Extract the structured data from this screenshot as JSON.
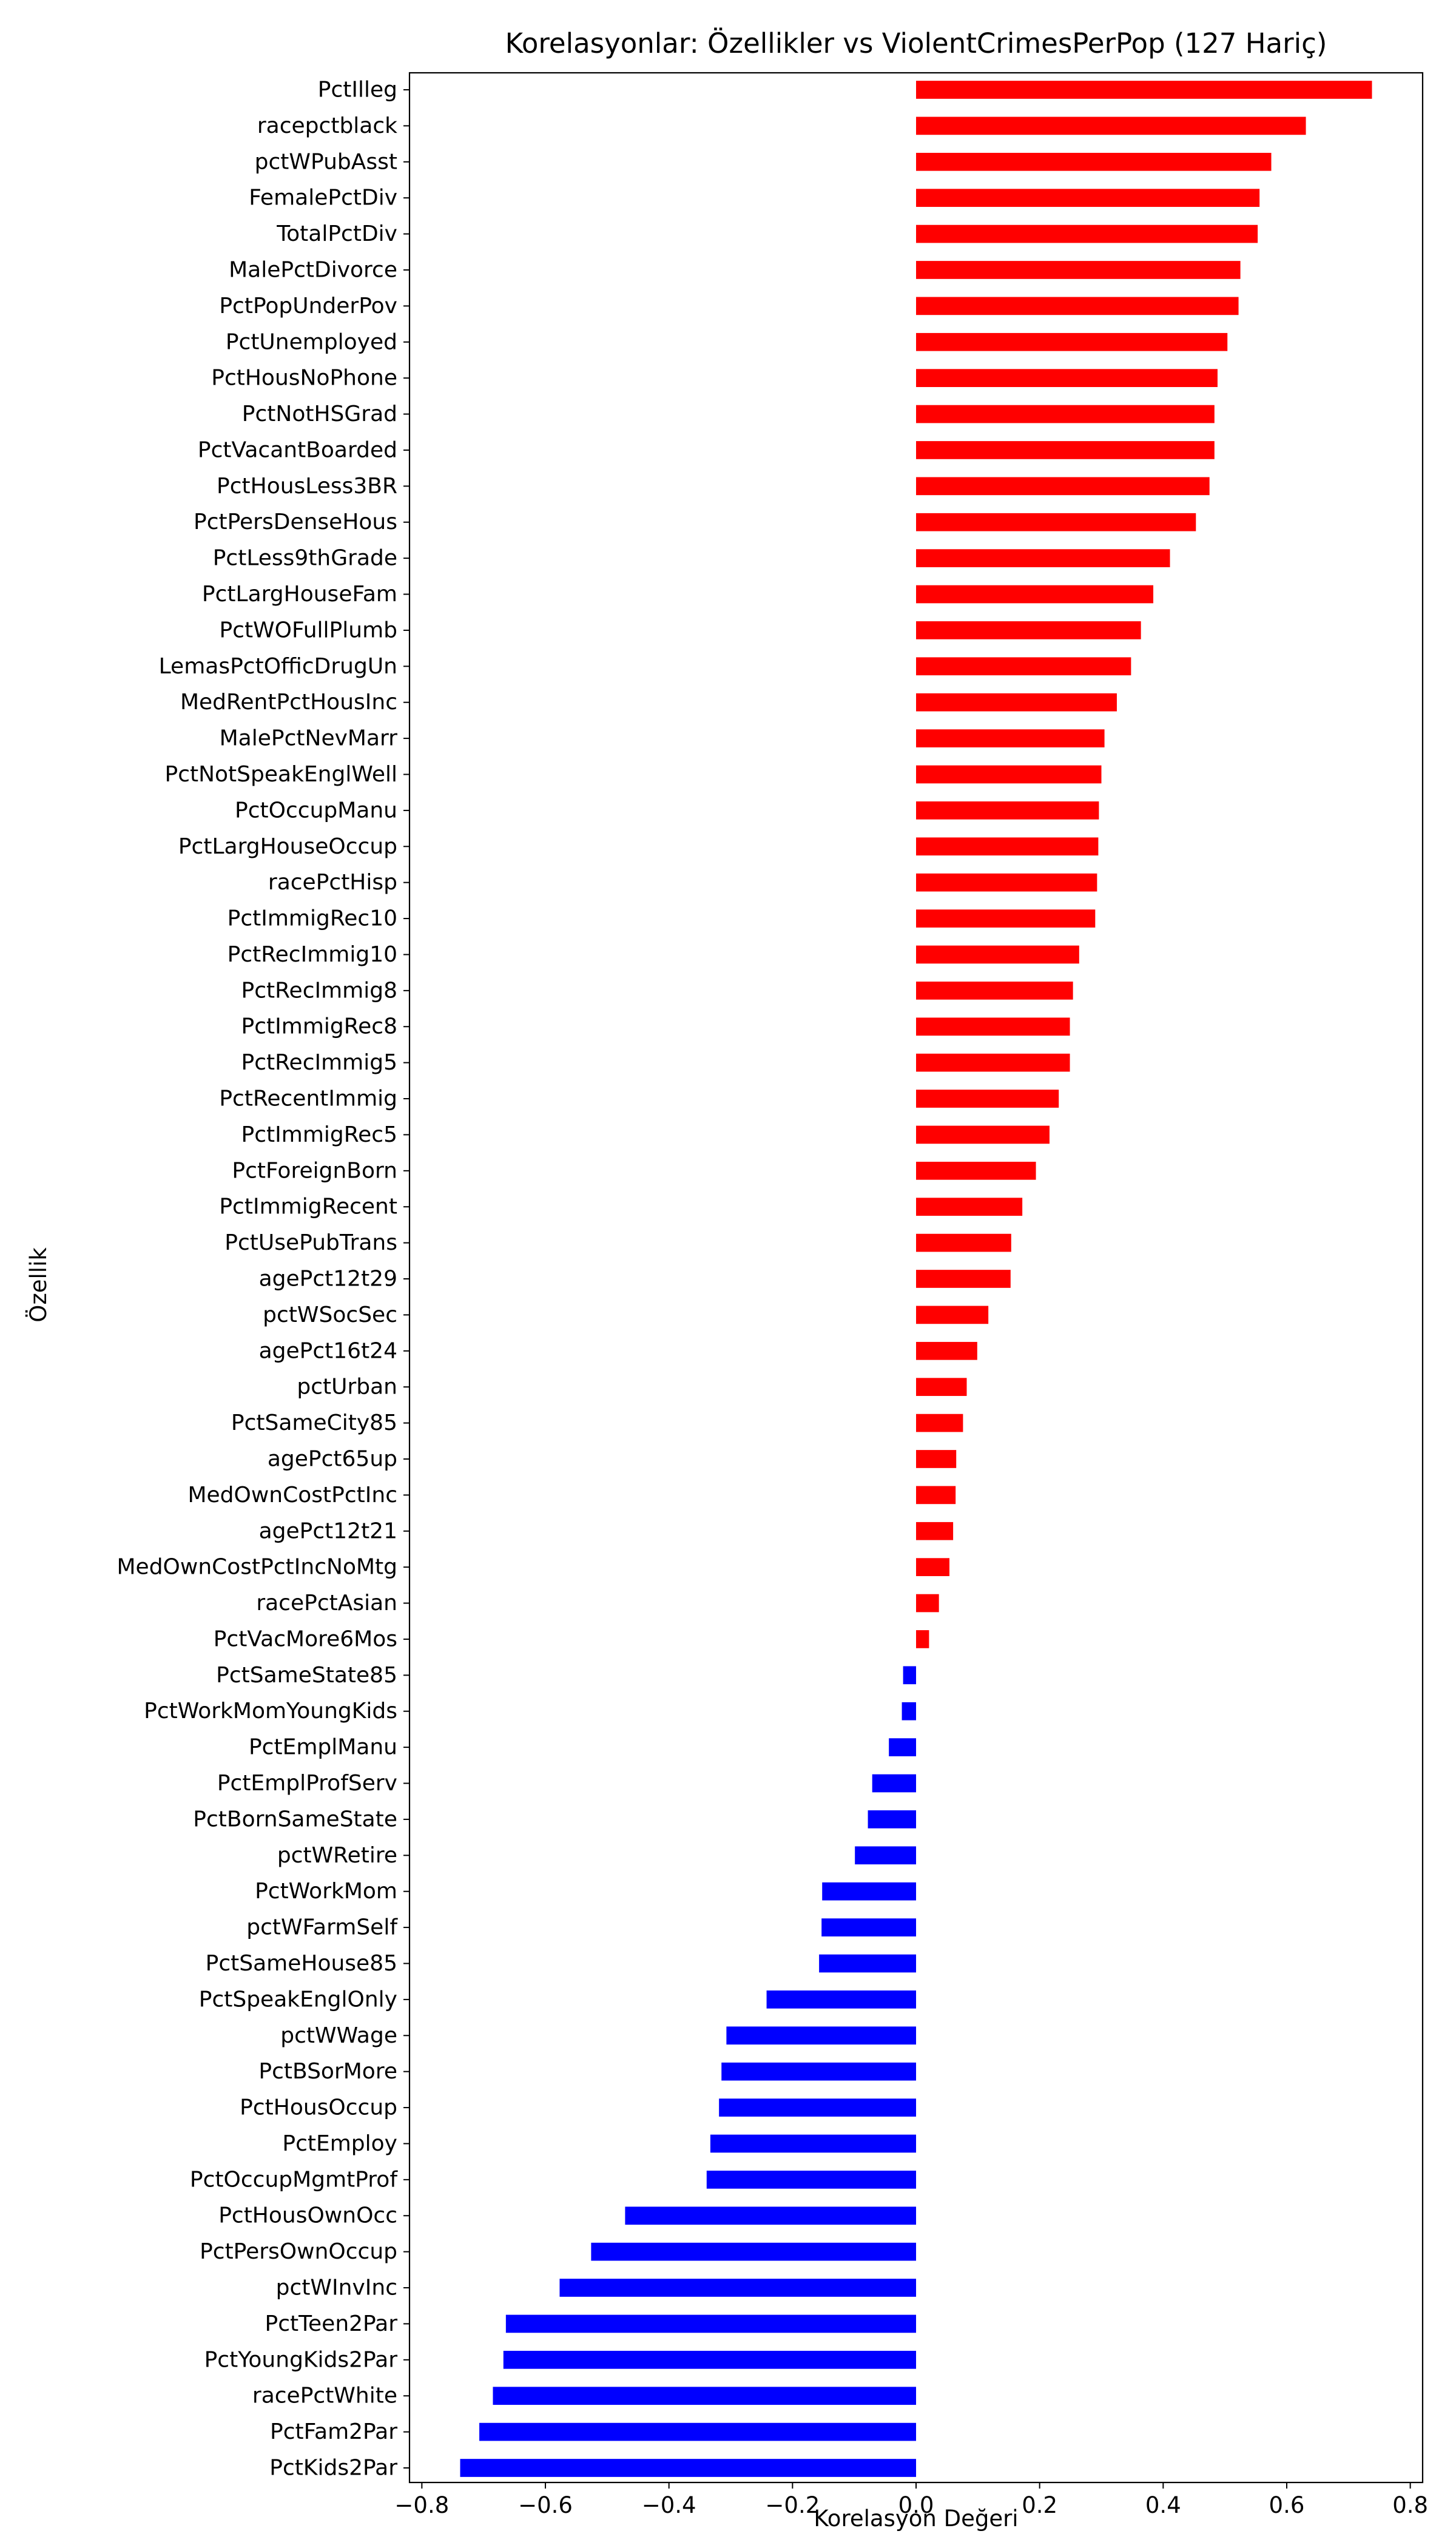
{
  "chart_data": {
    "type": "bar",
    "orientation": "horizontal",
    "title": "Korelasyonlar: Özellikler vs ViolentCrimesPerPop (127 Hariç)",
    "xlabel": "Korelasyon Değeri",
    "ylabel": "Özellik",
    "xlim": [
      -0.82,
      0.82
    ],
    "xticks": [
      -0.8,
      -0.6,
      -0.4,
      -0.2,
      0.0,
      0.2,
      0.4,
      0.6,
      0.8
    ],
    "xtick_labels": [
      "−0.8",
      "−0.6",
      "−0.4",
      "−0.2",
      "0.0",
      "0.2",
      "0.4",
      "0.6",
      "0.8"
    ],
    "grid": false,
    "colors": {
      "positive": "#ff0000",
      "negative": "#0000ff"
    },
    "categories": [
      "PctIlleg",
      "racepctblack",
      "pctWPubAsst",
      "FemalePctDiv",
      "TotalPctDiv",
      "MalePctDivorce",
      "PctPopUnderPov",
      "PctUnemployed",
      "PctHousNoPhone",
      "PctNotHSGrad",
      "PctVacantBoarded",
      "PctHousLess3BR",
      "PctPersDenseHous",
      "PctLess9thGrade",
      "PctLargHouseFam",
      "PctWOFullPlumb",
      "LemasPctOfficDrugUn",
      "MedRentPctHousInc",
      "MalePctNevMarr",
      "PctNotSpeakEnglWell",
      "PctOccupManu",
      "PctLargHouseOccup",
      "racePctHisp",
      "PctImmigRec10",
      "PctRecImmig10",
      "PctRecImmig8",
      "PctImmigRec8",
      "PctRecImmig5",
      "PctRecentImmig",
      "PctImmigRec5",
      "PctForeignBorn",
      "PctImmigRecent",
      "PctUsePubTrans",
      "agePct12t29",
      "pctWSocSec",
      "agePct16t24",
      "pctUrban",
      "PctSameCity85",
      "agePct65up",
      "MedOwnCostPctInc",
      "agePct12t21",
      "MedOwnCostPctIncNoMtg",
      "racePctAsian",
      "PctVacMore6Mos",
      "PctSameState85",
      "PctWorkMomYoungKids",
      "PctEmplManu",
      "PctEmplProfServ",
      "PctBornSameState",
      "pctWRetire",
      "PctWorkMom",
      "pctWFarmSelf",
      "PctSameHouse85",
      "PctSpeakEnglOnly",
      "pctWWage",
      "PctBSorMore",
      "PctHousOccup",
      "PctEmploy",
      "PctOccupMgmtProf",
      "PctHousOwnOcc",
      "PctPersOwnOccup",
      "pctWInvInc",
      "PctTeen2Par",
      "PctYoungKids2Par",
      "racePctWhite",
      "PctFam2Par",
      "PctKids2Par"
    ],
    "values": [
      0.738,
      0.631,
      0.575,
      0.556,
      0.553,
      0.525,
      0.522,
      0.504,
      0.488,
      0.483,
      0.483,
      0.475,
      0.453,
      0.411,
      0.384,
      0.364,
      0.348,
      0.325,
      0.305,
      0.3,
      0.296,
      0.295,
      0.293,
      0.29,
      0.264,
      0.254,
      0.249,
      0.249,
      0.231,
      0.216,
      0.194,
      0.172,
      0.154,
      0.153,
      0.117,
      0.099,
      0.082,
      0.076,
      0.065,
      0.064,
      0.06,
      0.054,
      0.037,
      0.021,
      -0.021,
      -0.023,
      -0.044,
      -0.071,
      -0.078,
      -0.099,
      -0.152,
      -0.153,
      -0.157,
      -0.242,
      -0.307,
      -0.315,
      -0.319,
      -0.333,
      -0.339,
      -0.471,
      -0.526,
      -0.577,
      -0.664,
      -0.668,
      -0.685,
      -0.707,
      -0.738
    ]
  }
}
